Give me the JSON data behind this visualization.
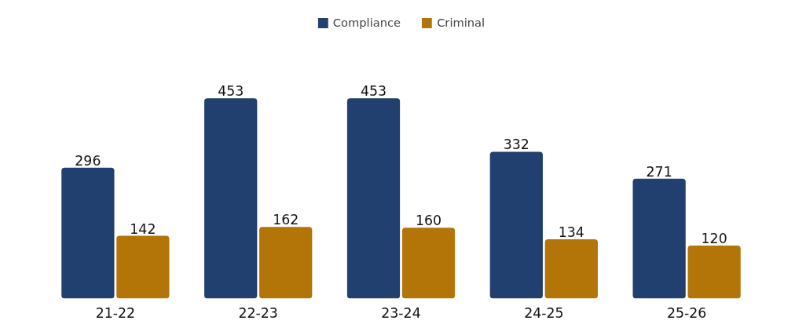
{
  "chart_data": {
    "type": "bar",
    "categories": [
      "21-22",
      "22-23",
      "23-24",
      "24-25",
      "25-26"
    ],
    "series": [
      {
        "name": "Compliance",
        "color": "#22406f",
        "values": [
          296,
          453,
          453,
          332,
          271
        ]
      },
      {
        "name": "Criminal",
        "color": "#b37508",
        "values": [
          142,
          162,
          160,
          134,
          120
        ]
      }
    ],
    "data_labels": true,
    "legend": "top",
    "grid": false,
    "tick_labels": "x"
  }
}
